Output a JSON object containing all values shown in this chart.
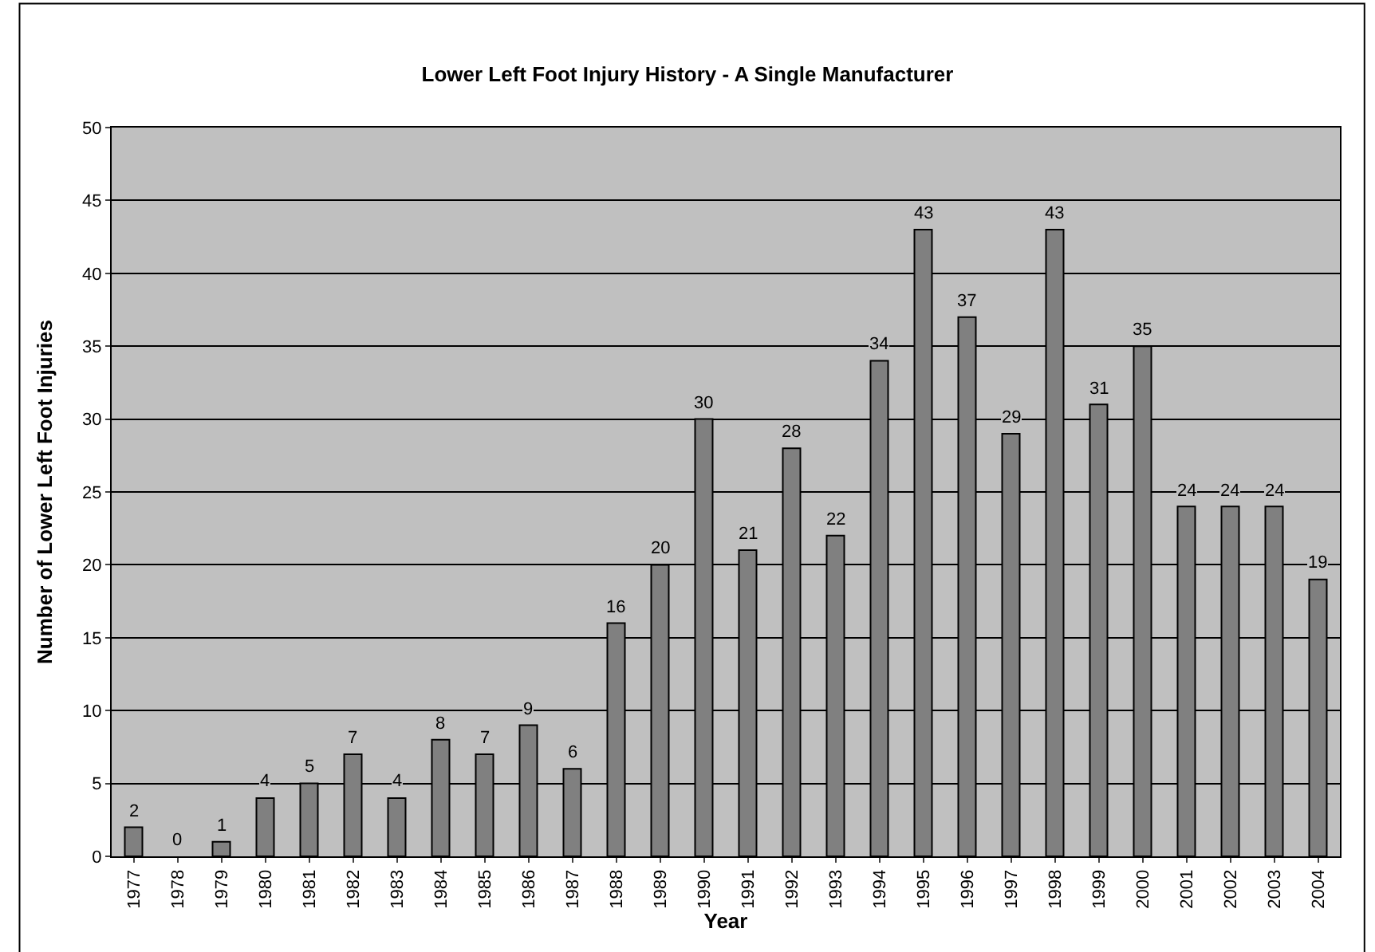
{
  "chart_data": {
    "type": "bar",
    "title": "Lower Left Foot Injury History - A Single Manufacturer",
    "xlabel": "Year",
    "ylabel": "Number of Lower Left Foot Injuries",
    "categories": [
      "1977",
      "1978",
      "1979",
      "1980",
      "1981",
      "1982",
      "1983",
      "1984",
      "1985",
      "1986",
      "1987",
      "1988",
      "1989",
      "1990",
      "1991",
      "1992",
      "1993",
      "1994",
      "1995",
      "1996",
      "1997",
      "1998",
      "1999",
      "2000",
      "2001",
      "2002",
      "2003",
      "2004"
    ],
    "values": [
      2,
      0,
      1,
      4,
      5,
      7,
      4,
      8,
      7,
      9,
      6,
      16,
      20,
      30,
      21,
      28,
      22,
      34,
      43,
      37,
      29,
      43,
      31,
      35,
      24,
      24,
      24,
      19
    ],
    "color": "#808080",
    "ylim": [
      0,
      50
    ],
    "yticks": [
      0,
      5,
      10,
      15,
      20,
      25,
      30,
      35,
      40,
      45,
      50
    ],
    "grid": "y",
    "data_labels": true
  }
}
